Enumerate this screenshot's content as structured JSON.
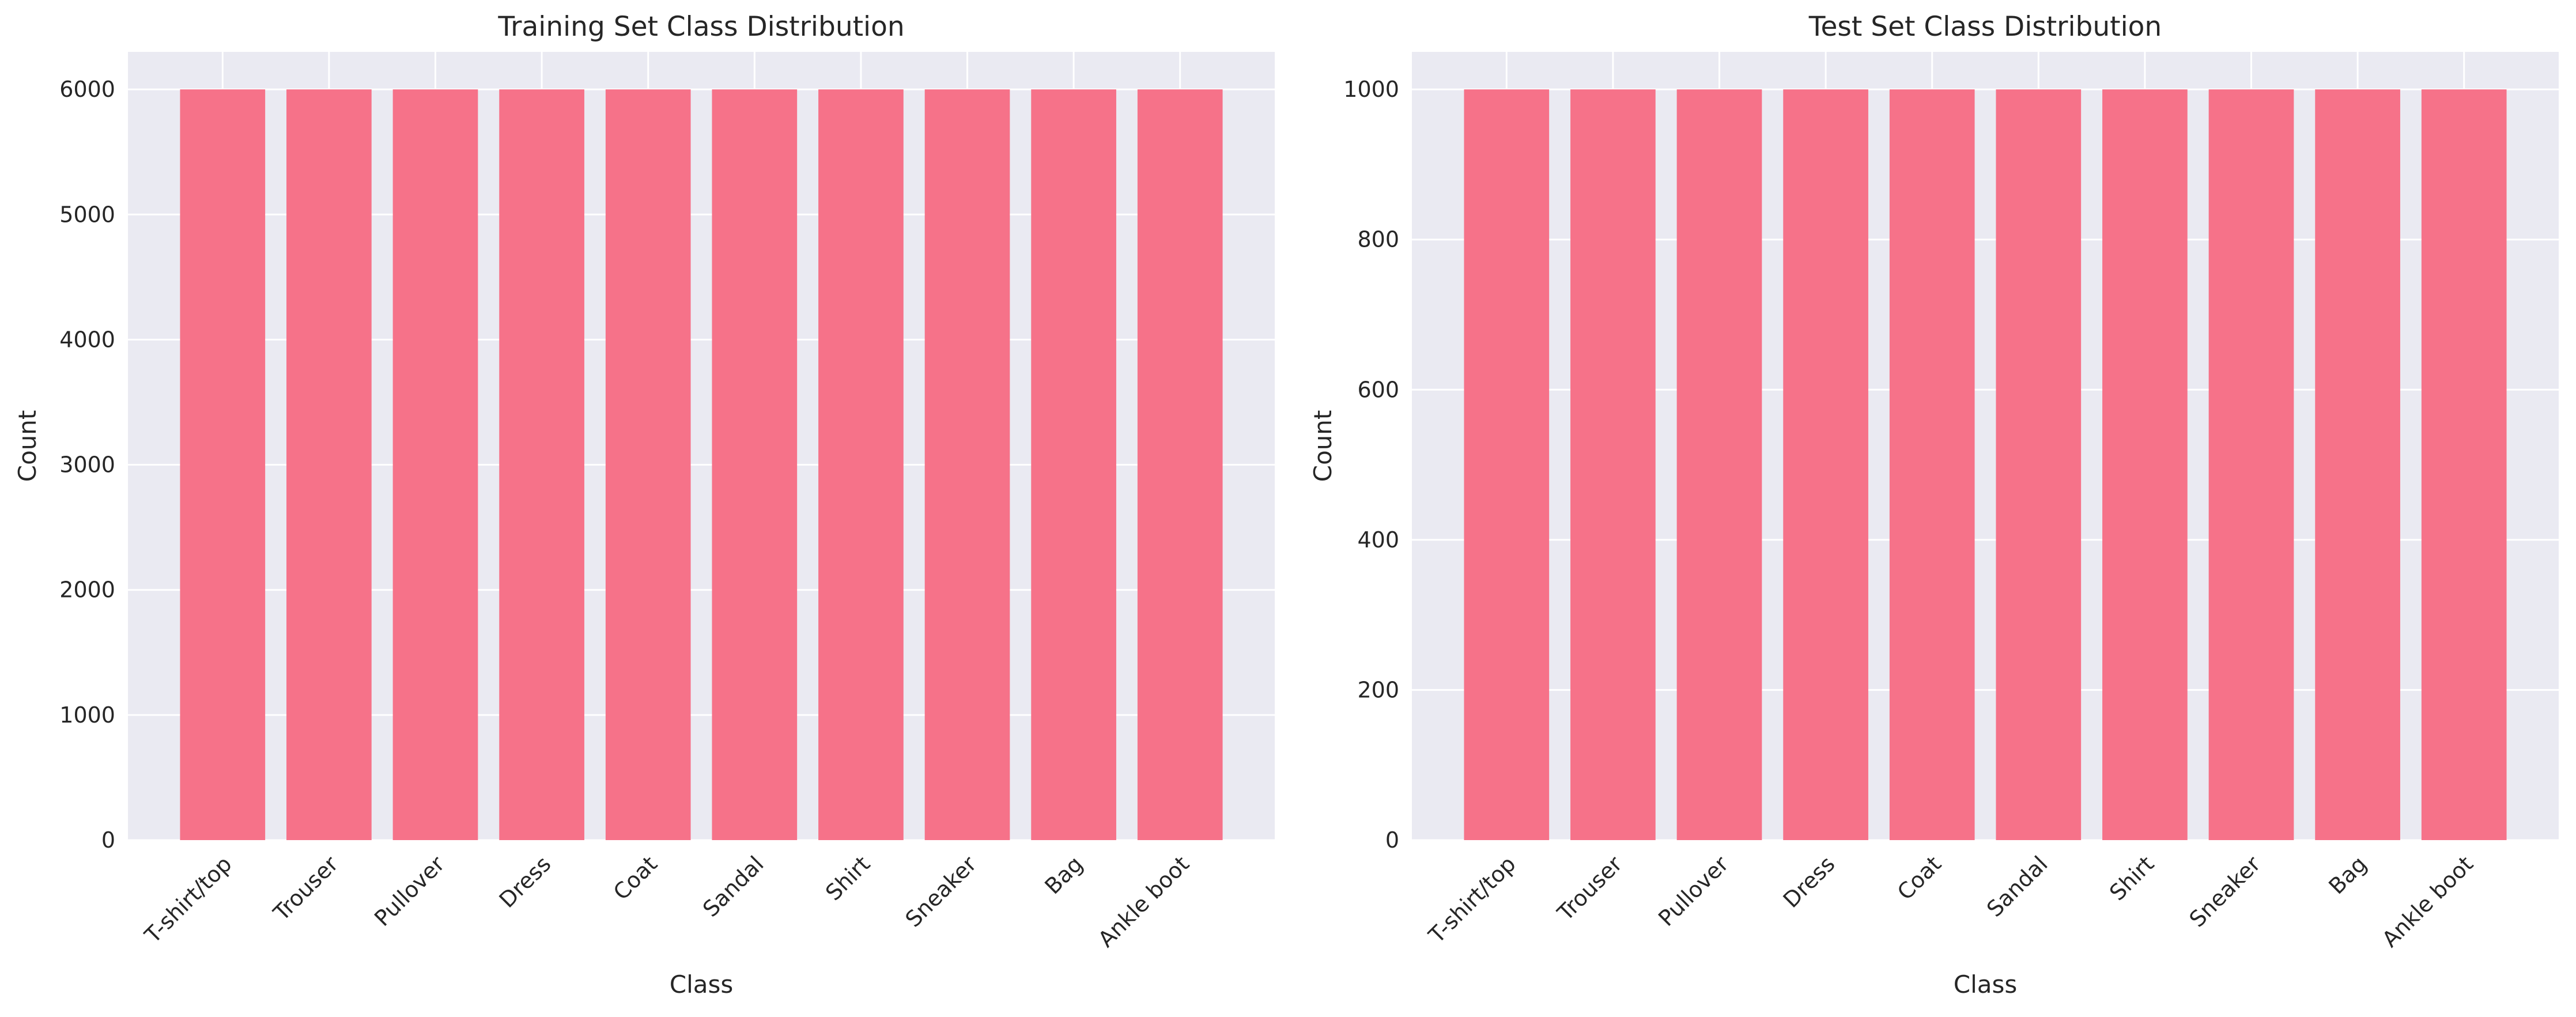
{
  "colors": {
    "bar": "#f67289",
    "plot_background": "#eaeaf2",
    "grid": "#ffffff",
    "text": "#262626"
  },
  "chart_data": [
    {
      "type": "bar",
      "title": "Training Set Class Distribution",
      "xlabel": "Class",
      "ylabel": "Count",
      "categories": [
        "T-shirt/top",
        "Trouser",
        "Pullover",
        "Dress",
        "Coat",
        "Sandal",
        "Shirt",
        "Sneaker",
        "Bag",
        "Ankle boot"
      ],
      "values": [
        6000,
        6000,
        6000,
        6000,
        6000,
        6000,
        6000,
        6000,
        6000,
        6000
      ],
      "ylim": [
        0,
        6300
      ],
      "yticks": [
        0,
        1000,
        2000,
        3000,
        4000,
        5000,
        6000
      ],
      "xtick_rotation": 45,
      "grid": true,
      "legend": "none"
    },
    {
      "type": "bar",
      "title": "Test Set Class Distribution",
      "xlabel": "Class",
      "ylabel": "Count",
      "categories": [
        "T-shirt/top",
        "Trouser",
        "Pullover",
        "Dress",
        "Coat",
        "Sandal",
        "Shirt",
        "Sneaker",
        "Bag",
        "Ankle boot"
      ],
      "values": [
        1000,
        1000,
        1000,
        1000,
        1000,
        1000,
        1000,
        1000,
        1000,
        1000
      ],
      "ylim": [
        0,
        1050
      ],
      "yticks": [
        0,
        200,
        400,
        600,
        800,
        1000
      ],
      "xtick_rotation": 45,
      "grid": true,
      "legend": "none"
    }
  ]
}
